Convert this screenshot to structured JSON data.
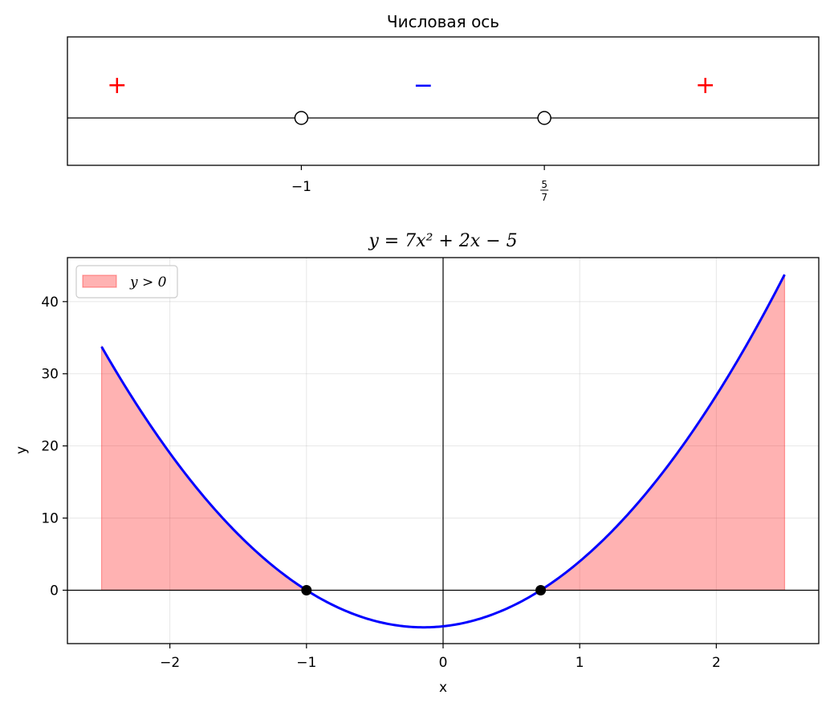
{
  "figure": {
    "background": "#ffffff"
  },
  "chart_data": [
    {
      "type": "number-line",
      "title": "Числовая ось",
      "points": [
        {
          "x": -1,
          "tick_label": "−1",
          "marker": "open"
        },
        {
          "x": 0.7142857,
          "tick_label_num": "5",
          "tick_label_den": "7",
          "marker": "open"
        }
      ],
      "signs": [
        {
          "x": -2.3,
          "symbol": "+",
          "color": "#ff0000"
        },
        {
          "x": -0.14,
          "symbol": "−",
          "color": "#0000ff"
        },
        {
          "x": 1.85,
          "symbol": "+",
          "color": "#ff0000"
        }
      ],
      "xlim": [
        -2.65,
        2.65
      ]
    },
    {
      "type": "line",
      "title": "y = 7x² + 2x − 5",
      "xlabel": "x",
      "ylabel": "y",
      "function": {
        "a": 7,
        "b": 2,
        "c": -5
      },
      "x_range": [
        -2.5,
        2.5
      ],
      "xlim": [
        -2.75,
        2.75
      ],
      "ylim": [
        -7.4,
        46.1
      ],
      "xticks": [
        -2,
        -1,
        0,
        1,
        2
      ],
      "xtick_labels": [
        "−2",
        "−1",
        "0",
        "1",
        "2"
      ],
      "yticks": [
        0,
        10,
        20,
        30,
        40
      ],
      "ytick_labels": [
        "0",
        "10",
        "20",
        "30",
        "40"
      ],
      "roots": [
        -1,
        0.7142857
      ],
      "line_color": "#0000ff",
      "fill_color": "#ff0000",
      "fill_alpha": 0.3,
      "grid": true,
      "legend": {
        "location": "top-left",
        "entries": [
          {
            "label": "y > 0",
            "kind": "fill"
          }
        ]
      }
    }
  ]
}
